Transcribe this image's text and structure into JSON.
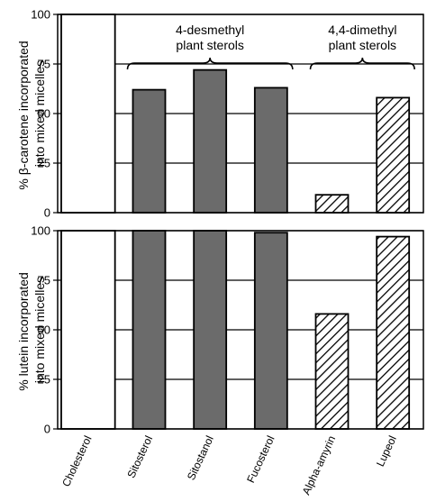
{
  "chart_data": [
    {
      "type": "bar",
      "ylabel_lines": [
        "% β-carotene incorporated",
        "into mixed micelles"
      ],
      "ylim": [
        0,
        100
      ],
      "yticks": [
        "0",
        "25",
        "50",
        "75",
        "100"
      ],
      "categories": [
        "Cholesterol",
        "Sitosterol",
        "Sitostanol",
        "Fucosterol",
        "Alpha-amyrin",
        "Lupeol"
      ],
      "values": [
        100,
        62,
        72,
        63,
        9,
        58
      ],
      "grid": true,
      "group_labels": [
        {
          "lines": [
            "4-desmethyl",
            "plant sterols"
          ],
          "categories": [
            "Sitosterol",
            "Sitostanol",
            "Fucosterol"
          ]
        },
        {
          "lines": [
            "4,4-dimethyl",
            "plant sterols"
          ],
          "categories": [
            "Alpha-amyrin",
            "Lupeol"
          ]
        }
      ]
    },
    {
      "type": "bar",
      "ylabel_lines": [
        "% lutein incorporated",
        "into mixed micelles"
      ],
      "ylim": [
        0,
        100
      ],
      "yticks": [
        "0",
        "25",
        "50",
        "75",
        "100"
      ],
      "categories": [
        "Cholesterol",
        "Sitosterol",
        "Sitostanol",
        "Fucosterol",
        "Alpha-amyrin",
        "Lupeol"
      ],
      "values": [
        100,
        100,
        100,
        99,
        58,
        97
      ],
      "grid": true
    }
  ],
  "bar_styles": {
    "Cholesterol": "white",
    "Sitosterol": "gray",
    "Sitostanol": "gray",
    "Fucosterol": "gray",
    "Alpha-amyrin": "hatched",
    "Lupeol": "hatched"
  },
  "colors": {
    "gray_fill": "#6b6b6b",
    "white_fill": "#ffffff",
    "hatch": "#000000"
  }
}
